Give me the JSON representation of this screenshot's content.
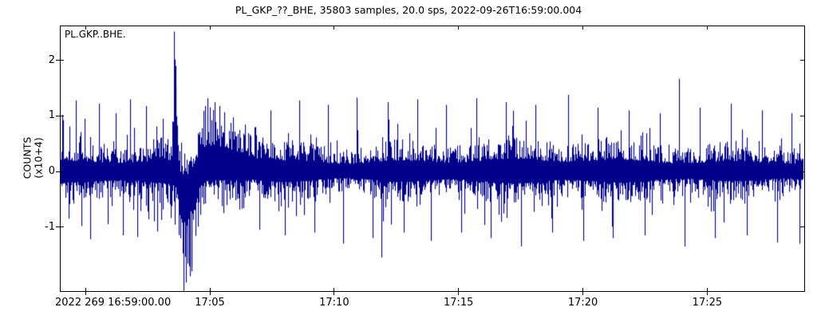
{
  "title": "PL_GKP_??_BHE, 35803 samples, 20.0 sps, 2022-09-26T16:59:00.004",
  "trace_label": "PL.GKP..BHE.",
  "y_axis": {
    "label_line1": "COUNTS",
    "label_line2": "(x10+4)",
    "ticks": [
      {
        "label": "2",
        "value": 2
      },
      {
        "label": "1",
        "value": 1
      },
      {
        "label": "0",
        "value": 0
      },
      {
        "label": "-1",
        "value": -1
      }
    ]
  },
  "x_axis": {
    "ticks": [
      {
        "label": "2022 269 16:59:00.00",
        "minute": 1
      },
      {
        "label": "17:05",
        "minute": 6
      },
      {
        "label": "17:10",
        "minute": 11
      },
      {
        "label": "17:15",
        "minute": 16
      },
      {
        "label": "17:20",
        "minute": 21
      },
      {
        "label": "17:25",
        "minute": 26
      }
    ]
  },
  "colors": {
    "trace": "#00008B",
    "axis": "#000000",
    "background": "#ffffff"
  },
  "chart_data": {
    "type": "line",
    "subtype": "seismogram",
    "title": "PL_GKP_??_BHE, 35803 samples, 20.0 sps, 2022-09-26T16:59:00.004",
    "trace_id": "PL.GKP..BHE.",
    "network": "PL",
    "station": "GKP",
    "channel": "BHE",
    "samples": 35803,
    "sampling_rate_sps": 20.0,
    "start_time": "2022-09-26T16:59:00.004",
    "duration_minutes": 29.84,
    "ylabel": "COUNTS (x10+4)",
    "ylim": [
      -2.16,
      2.6
    ],
    "xlim_minutes": [
      0,
      29.9
    ],
    "yticks": [
      2,
      1,
      0,
      -1
    ],
    "xtick_minutes": [
      1,
      6,
      11,
      16,
      21,
      26
    ],
    "grid": false,
    "legend": "none",
    "background_noise_band": 0.55,
    "event": {
      "onset_minute": 4.55,
      "peak_amplitude": 2.52,
      "trough_amplitude": -2.2,
      "coda_bulge_minutes": [
        5.6,
        7.6
      ],
      "coda_peak": 1.35
    },
    "late_spike": {
      "minute": 24.85,
      "amplitude": 1.67
    },
    "envelope": [
      [
        0.0,
        -0.55,
        0.55
      ],
      [
        4.45,
        -0.55,
        0.55
      ],
      [
        4.52,
        -0.75,
        1.5
      ],
      [
        4.58,
        -0.9,
        2.52
      ],
      [
        4.68,
        -1.35,
        1.45
      ],
      [
        4.8,
        -1.9,
        0.55
      ],
      [
        4.95,
        -2.2,
        0.4
      ],
      [
        5.12,
        -2.05,
        0.5
      ],
      [
        5.32,
        -1.55,
        0.65
      ],
      [
        5.58,
        -0.95,
        1.05
      ],
      [
        5.85,
        -0.8,
        1.35
      ],
      [
        6.35,
        -0.75,
        1.3
      ],
      [
        6.95,
        -0.7,
        1.1
      ],
      [
        7.6,
        -0.62,
        0.85
      ],
      [
        8.3,
        -0.57,
        0.6
      ],
      [
        29.9,
        -0.55,
        0.58
      ]
    ],
    "spikes": [
      [
        0.05,
        1.02
      ],
      [
        0.33,
        -0.85
      ],
      [
        0.62,
        1.28
      ],
      [
        0.95,
        0.95
      ],
      [
        1.18,
        -1.22
      ],
      [
        1.55,
        1.22
      ],
      [
        1.9,
        -0.95
      ],
      [
        2.2,
        1.05
      ],
      [
        2.5,
        -1.15
      ],
      [
        2.78,
        1.3
      ],
      [
        3.08,
        -1.18
      ],
      [
        3.42,
        1.18
      ],
      [
        3.75,
        -0.9
      ],
      [
        4.1,
        0.95
      ],
      [
        4.57,
        2.52
      ],
      [
        4.62,
        1.9
      ],
      [
        4.93,
        -2.15
      ],
      [
        5.05,
        -2.0
      ],
      [
        5.25,
        -1.8
      ],
      [
        5.9,
        1.32
      ],
      [
        6.2,
        1.25
      ],
      [
        8.0,
        -1.05
      ],
      [
        8.45,
        1.1
      ],
      [
        9.0,
        -1.15
      ],
      [
        9.6,
        1.28
      ],
      [
        10.2,
        -1.1
      ],
      [
        10.75,
        1.2
      ],
      [
        11.35,
        -1.3
      ],
      [
        11.9,
        1.33
      ],
      [
        12.55,
        -1.2
      ],
      [
        12.9,
        -1.55
      ],
      [
        13.15,
        1.25
      ],
      [
        13.8,
        -1.1
      ],
      [
        14.35,
        1.3
      ],
      [
        14.9,
        -1.25
      ],
      [
        15.5,
        1.2
      ],
      [
        16.1,
        -1.1
      ],
      [
        16.7,
        1.32
      ],
      [
        17.3,
        -1.2
      ],
      [
        17.9,
        1.25
      ],
      [
        18.5,
        -1.35
      ],
      [
        19.1,
        1.2
      ],
      [
        19.75,
        -1.1
      ],
      [
        20.4,
        1.38
      ],
      [
        21.0,
        -1.25
      ],
      [
        21.6,
        1.15
      ],
      [
        22.2,
        -1.2
      ],
      [
        22.85,
        1.1
      ],
      [
        23.5,
        -1.15
      ],
      [
        24.1,
        1.05
      ],
      [
        24.85,
        1.67
      ],
      [
        25.08,
        -1.35
      ],
      [
        25.7,
        1.15
      ],
      [
        26.3,
        -1.2
      ],
      [
        26.95,
        1.22
      ],
      [
        27.6,
        -1.15
      ],
      [
        28.2,
        1.1
      ],
      [
        28.8,
        -1.28
      ],
      [
        29.4,
        1.05
      ],
      [
        29.7,
        -1.3
      ]
    ]
  }
}
